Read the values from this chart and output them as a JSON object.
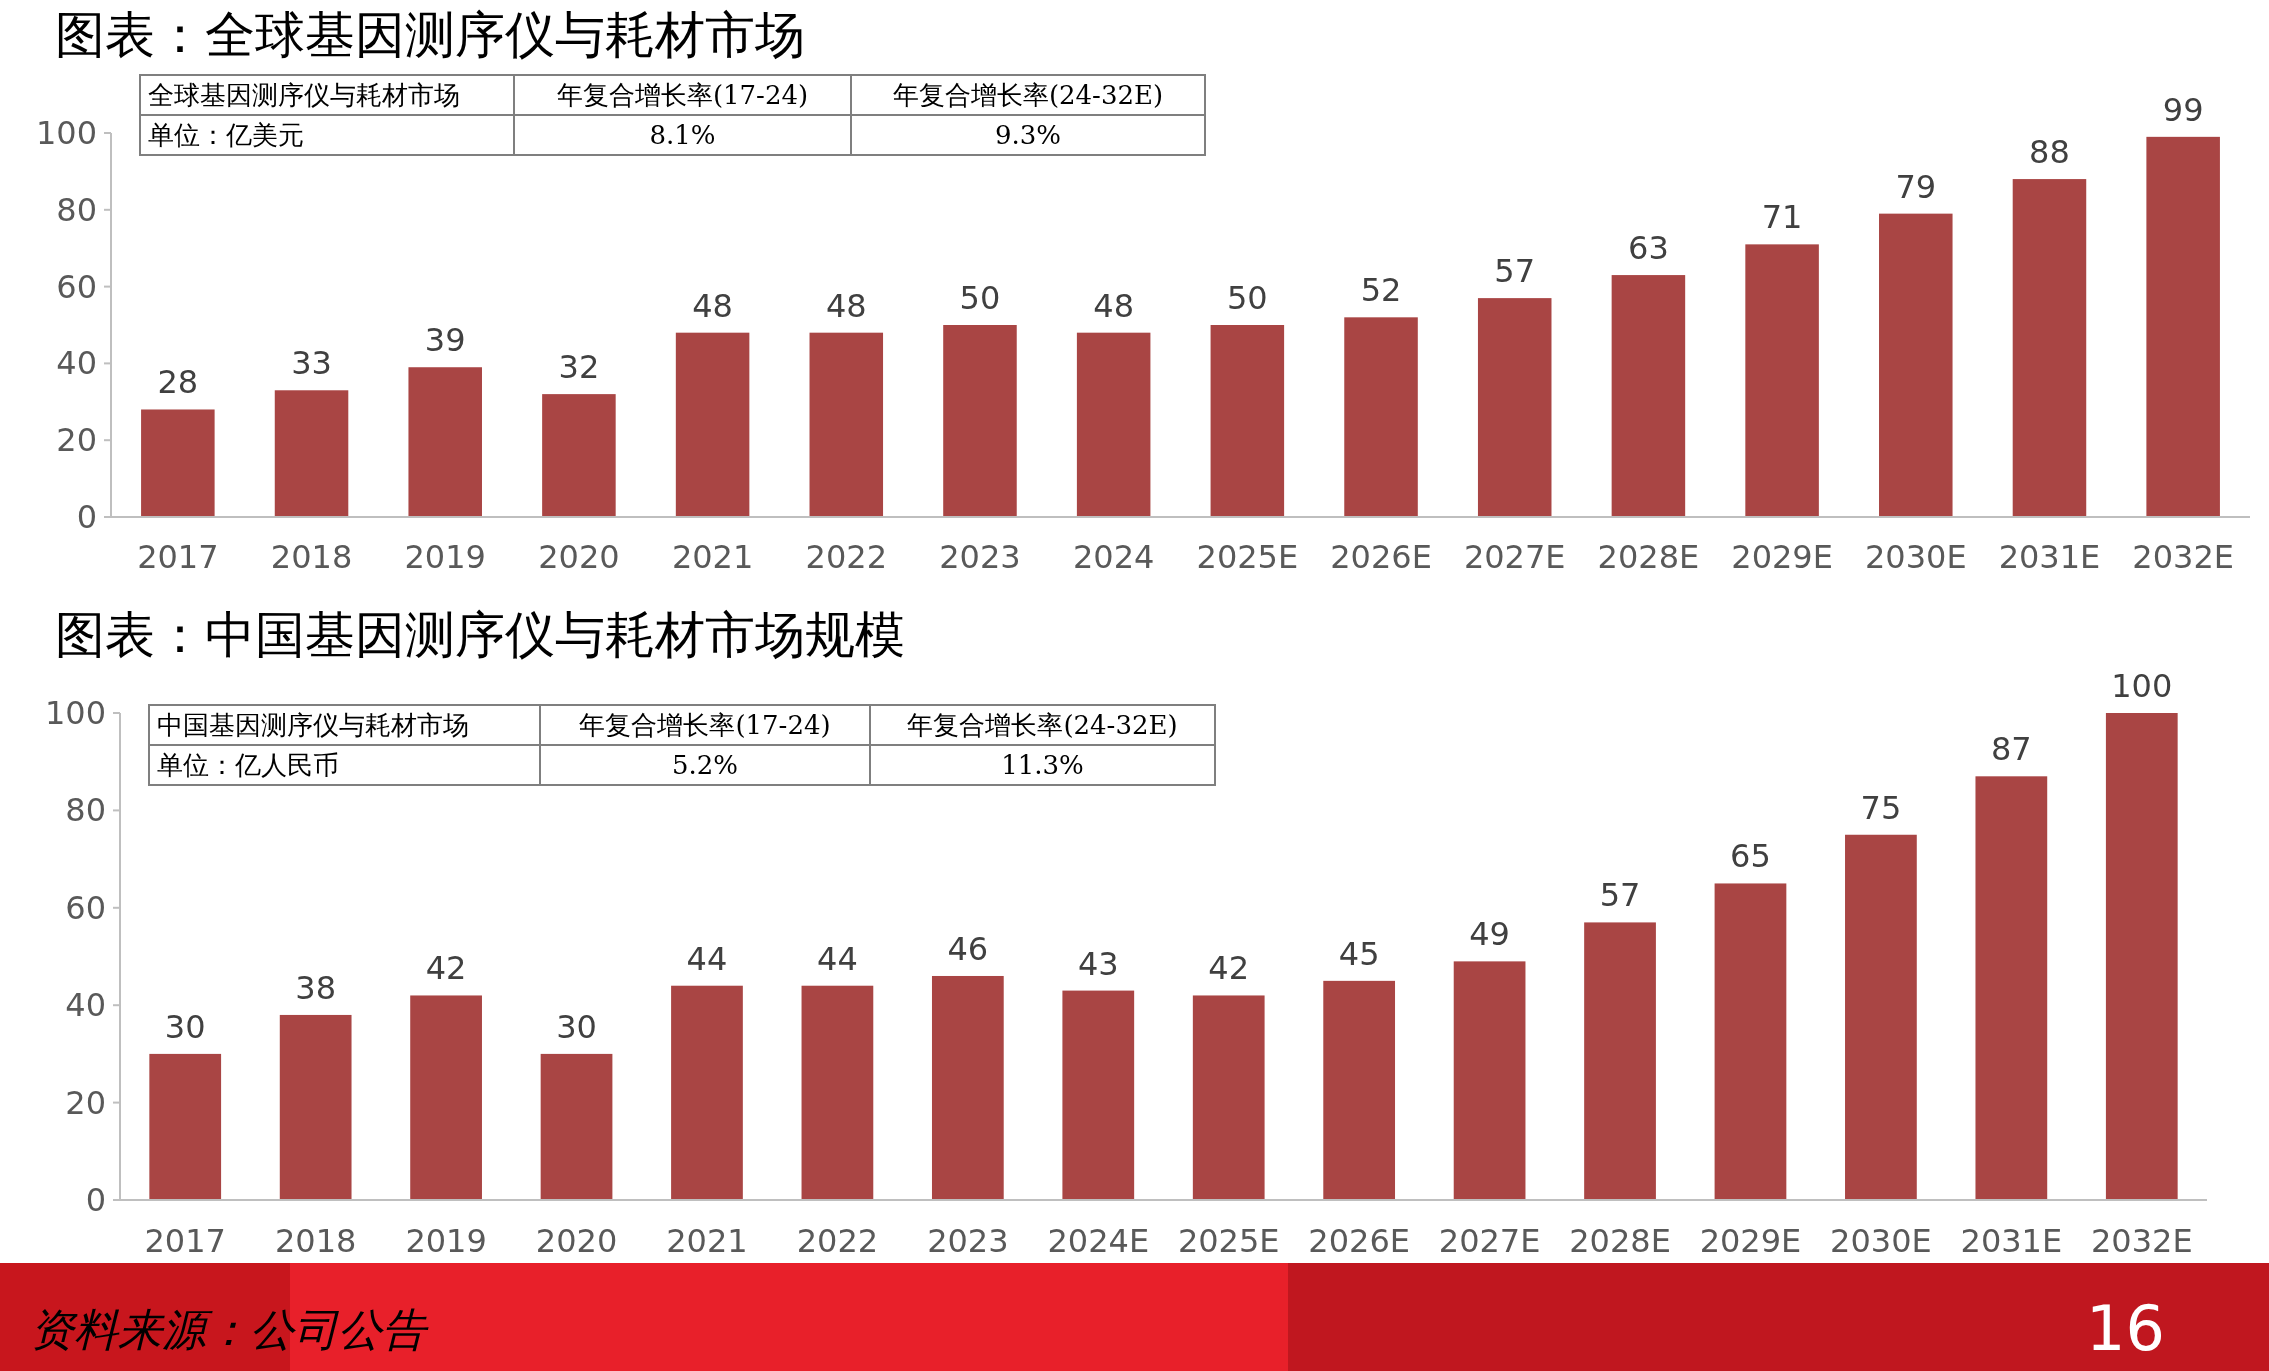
{
  "chart_data": [
    {
      "type": "bar",
      "title": "图表：全球基因测序仪与耗材市场",
      "categories": [
        "2017",
        "2018",
        "2019",
        "2020",
        "2021",
        "2022",
        "2023",
        "2024",
        "2025E",
        "2026E",
        "2027E",
        "2028E",
        "2029E",
        "2030E",
        "2031E",
        "2032E"
      ],
      "values": [
        28,
        33,
        39,
        32,
        48,
        48,
        50,
        48,
        50,
        52,
        57,
        63,
        71,
        79,
        88,
        99
      ],
      "color": "#a94544",
      "ylim": [
        0,
        100
      ],
      "yticks": [
        0,
        20,
        40,
        60,
        80,
        100
      ],
      "data_labels": true,
      "grid": false,
      "annotations": [
        "全球基因测序仪与耗材市场",
        "年复合增长率(17-24)",
        "年复合增长率(24-32E)",
        "单位：亿美元",
        "8.1%",
        "9.3%"
      ]
    },
    {
      "type": "bar",
      "title": "图表：中国基因测序仪与耗材市场规模",
      "categories": [
        "2017",
        "2018",
        "2019",
        "2020",
        "2021",
        "2022",
        "2023",
        "2024E",
        "2025E",
        "2026E",
        "2027E",
        "2028E",
        "2029E",
        "2030E",
        "2031E",
        "2032E"
      ],
      "values": [
        30,
        38,
        42,
        30,
        44,
        44,
        46,
        43,
        42,
        45,
        49,
        57,
        65,
        75,
        87,
        100
      ],
      "color": "#a94544",
      "ylim": [
        0,
        100
      ],
      "yticks": [
        0,
        20,
        40,
        60,
        80,
        100
      ],
      "data_labels": true,
      "grid": false,
      "annotations": [
        "中国基因测序仪与耗材市场",
        "年复合增长率(17-24)",
        "年复合增长率(24-32E)",
        "单位：亿人民币",
        "5.2%",
        "11.3%",
        "资料来源：公司公告",
        "16"
      ]
    }
  ]
}
